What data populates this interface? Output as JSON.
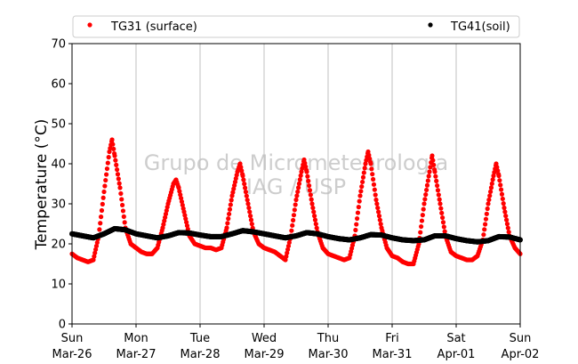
{
  "chart_data": {
    "type": "scatter",
    "ylabel": "Temperature (°C)",
    "ylim": [
      0,
      70
    ],
    "yticks": [
      "0",
      "10",
      "20",
      "30",
      "40",
      "50",
      "60",
      "70"
    ],
    "xlim": [
      "2017-03-26",
      "2017-04-02"
    ],
    "xticks": [
      {
        "day": "Sun",
        "date": "Mar-26"
      },
      {
        "day": "Mon",
        "date": "Mar-27"
      },
      {
        "day": "Tue",
        "date": "Mar-28"
      },
      {
        "day": "Wed",
        "date": "Mar-29"
      },
      {
        "day": "Thu",
        "date": "Mar-30"
      },
      {
        "day": "Fri",
        "date": "Mar-31"
      },
      {
        "day": "Sat",
        "date": "Apr-01"
      },
      {
        "day": "Sun",
        "date": "Apr-02"
      }
    ],
    "grid": "vertical",
    "legend_placement": "top",
    "watermark": [
      "Grupo de Micrometeorologia",
      "IAG / USP"
    ],
    "series": [
      {
        "name": "TG31 (surface)",
        "color": "#ff0000",
        "x": [
          "03-26 00:00",
          "03-26 02:00",
          "03-26 04:00",
          "03-26 06:00",
          "03-26 08:00",
          "03-26 10:00",
          "03-26 12:00",
          "03-26 14:00",
          "03-26 15:00",
          "03-26 16:00",
          "03-26 18:00",
          "03-26 20:00",
          "03-26 22:00",
          "03-27 00:00",
          "03-27 02:00",
          "03-27 04:00",
          "03-27 06:00",
          "03-27 08:00",
          "03-27 10:00",
          "03-27 12:00",
          "03-27 14:00",
          "03-27 15:00",
          "03-27 16:00",
          "03-27 18:00",
          "03-27 20:00",
          "03-27 22:00",
          "03-28 00:00",
          "03-28 02:00",
          "03-28 04:00",
          "03-28 06:00",
          "03-28 08:00",
          "03-28 10:00",
          "03-28 12:00",
          "03-28 14:00",
          "03-28 15:00",
          "03-28 16:00",
          "03-28 18:00",
          "03-28 20:00",
          "03-28 22:00",
          "03-29 00:00",
          "03-29 02:00",
          "03-29 04:00",
          "03-29 06:00",
          "03-29 08:00",
          "03-29 10:00",
          "03-29 12:00",
          "03-29 14:00",
          "03-29 15:00",
          "03-29 16:00",
          "03-29 18:00",
          "03-29 20:00",
          "03-29 22:00",
          "03-30 00:00",
          "03-30 02:00",
          "03-30 04:00",
          "03-30 06:00",
          "03-30 08:00",
          "03-30 10:00",
          "03-30 12:00",
          "03-30 14:00",
          "03-30 15:00",
          "03-30 16:00",
          "03-30 18:00",
          "03-30 20:00",
          "03-30 22:00",
          "03-31 00:00",
          "03-31 02:00",
          "03-31 04:00",
          "03-31 06:00",
          "03-31 08:00",
          "03-31 10:00",
          "03-31 12:00",
          "03-31 14:00",
          "03-31 15:00",
          "03-31 16:00",
          "03-31 18:00",
          "03-31 20:00",
          "03-31 22:00",
          "04-01 00:00",
          "04-01 02:00",
          "04-01 04:00",
          "04-01 06:00",
          "04-01 08:00",
          "04-01 10:00",
          "04-01 12:00",
          "04-01 14:00",
          "04-01 15:00",
          "04-01 16:00",
          "04-01 18:00",
          "04-01 20:00",
          "04-01 22:00",
          "04-02 00:00"
        ],
        "y": [
          17.5,
          16.5,
          16,
          15.5,
          16,
          22,
          33,
          43,
          46,
          42,
          34,
          24,
          20,
          19,
          18,
          17.5,
          17.5,
          19,
          24,
          30,
          35,
          36,
          34,
          28,
          22,
          20,
          19.5,
          19,
          19,
          18.5,
          19,
          24,
          32,
          38,
          40,
          37,
          30,
          23,
          20,
          19,
          18.5,
          18,
          17,
          16,
          22,
          31,
          38,
          41,
          38,
          30,
          23,
          19,
          17.5,
          17,
          16.5,
          16,
          16.5,
          22,
          32,
          40,
          43,
          40,
          31,
          24,
          19,
          17,
          16.5,
          15.5,
          15,
          15,
          20,
          30,
          38,
          42,
          38,
          30,
          22,
          18,
          17,
          16.5,
          16,
          16,
          17,
          21,
          30,
          37,
          40,
          37,
          29,
          22,
          19,
          17.5
        ]
      },
      {
        "name": "TG41(soil)",
        "color": "#000000",
        "x": [
          "03-26 00:00",
          "03-26 04:00",
          "03-26 08:00",
          "03-26 12:00",
          "03-26 16:00",
          "03-26 20:00",
          "03-27 00:00",
          "03-27 04:00",
          "03-27 08:00",
          "03-27 12:00",
          "03-27 16:00",
          "03-27 20:00",
          "03-28 00:00",
          "03-28 04:00",
          "03-28 08:00",
          "03-28 12:00",
          "03-28 16:00",
          "03-28 20:00",
          "03-29 00:00",
          "03-29 04:00",
          "03-29 08:00",
          "03-29 12:00",
          "03-29 16:00",
          "03-29 20:00",
          "03-30 00:00",
          "03-30 04:00",
          "03-30 08:00",
          "03-30 12:00",
          "03-30 16:00",
          "03-30 20:00",
          "03-31 00:00",
          "03-31 04:00",
          "03-31 08:00",
          "03-31 12:00",
          "03-31 16:00",
          "03-31 20:00",
          "04-01 00:00",
          "04-01 04:00",
          "04-01 08:00",
          "04-01 12:00",
          "04-01 16:00",
          "04-01 20:00",
          "04-02 00:00"
        ],
        "y": [
          22.5,
          22,
          21.5,
          22.5,
          23.8,
          23.5,
          22.5,
          22,
          21.5,
          22,
          22.8,
          22.7,
          22.2,
          21.8,
          21.8,
          22.5,
          23.3,
          23,
          22.5,
          22,
          21.5,
          22,
          22.8,
          22.5,
          21.8,
          21.3,
          21,
          21.5,
          22.3,
          22.2,
          21.5,
          21,
          20.8,
          21,
          22,
          22,
          21.3,
          20.8,
          20.5,
          20.8,
          21.8,
          21.7,
          21
        ]
      }
    ]
  }
}
